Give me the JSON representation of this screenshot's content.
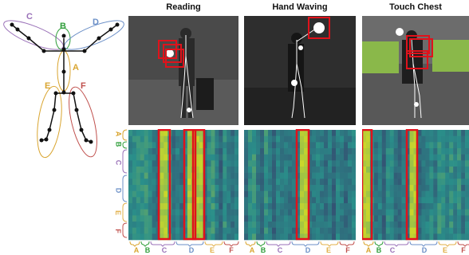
{
  "skeleton_labels": [
    {
      "key": "C",
      "color": "#9a71b8"
    },
    {
      "key": "B",
      "color": "#2f9e3a"
    },
    {
      "key": "D",
      "color": "#6b8fc7"
    },
    {
      "key": "A",
      "color": "#d9a530"
    },
    {
      "key": "E",
      "color": "#d9a530"
    },
    {
      "key": "F",
      "color": "#c0504d"
    }
  ],
  "panels": [
    {
      "title": "Reading"
    },
    {
      "title": "Hand Waving"
    },
    {
      "title": "Touch Chest"
    }
  ],
  "group_labels": [
    {
      "key": "A",
      "color": "#d9a530"
    },
    {
      "key": "B",
      "color": "#2f9e3a"
    },
    {
      "key": "C",
      "color": "#9a71b8"
    },
    {
      "key": "D",
      "color": "#6b8fc7"
    },
    {
      "key": "E",
      "color": "#e2b04a"
    },
    {
      "key": "F",
      "color": "#c0504d"
    }
  ],
  "colors": {
    "highlight_box": "#e0121b",
    "heat_low": "#3b1f5f",
    "heat_mid": "#2a8f8a",
    "heat_high": "#e7e419"
  }
}
